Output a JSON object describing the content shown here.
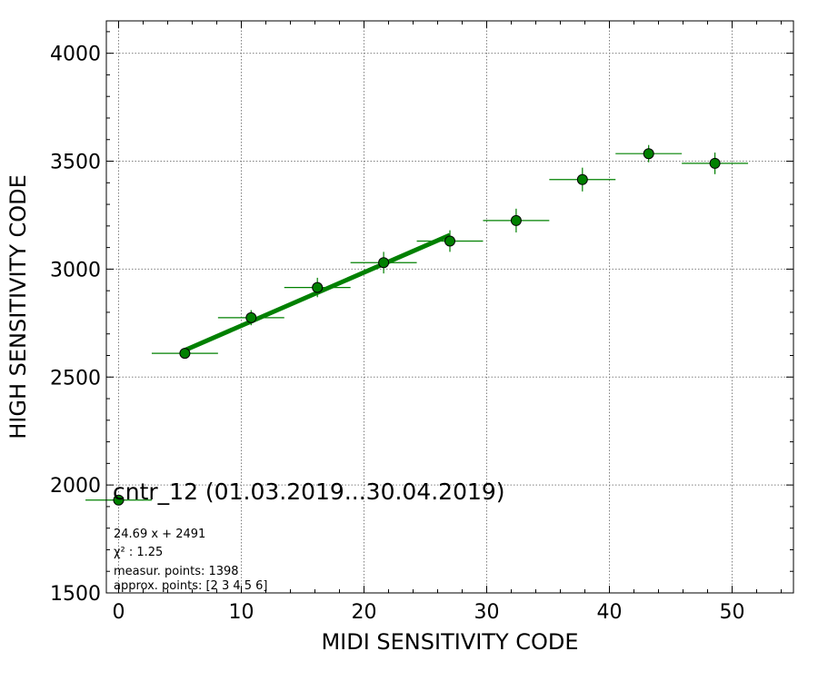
{
  "chart_data": {
    "type": "scatter",
    "title": "cntr_12 (01.03.2019...30.04.2019)",
    "xlabel": "MIDI SENSITIVITY CODE",
    "ylabel": "HIGH SENSITIVITY CODE",
    "xlim": [
      -1,
      55
    ],
    "ylim": [
      1500,
      4150
    ],
    "xticks": [
      0,
      10,
      20,
      30,
      40,
      50
    ],
    "yticks": [
      1500,
      2000,
      2500,
      3000,
      3500,
      4000
    ],
    "grid": true,
    "colors": {
      "marker": "#008000",
      "fit": "#008000",
      "errorbar": "#008000",
      "grid": "#808080"
    },
    "points": [
      {
        "x": 0,
        "y": 1930,
        "xerr": 2.7,
        "yerr": 10
      },
      {
        "x": 5.4,
        "y": 2610,
        "xerr": 2.7,
        "yerr": 15
      },
      {
        "x": 10.8,
        "y": 2775,
        "xerr": 2.7,
        "yerr": 35
      },
      {
        "x": 16.2,
        "y": 2915,
        "xerr": 2.7,
        "yerr": 45
      },
      {
        "x": 21.6,
        "y": 3030,
        "xerr": 2.7,
        "yerr": 50
      },
      {
        "x": 27.0,
        "y": 3130,
        "xerr": 2.7,
        "yerr": 50
      },
      {
        "x": 32.4,
        "y": 3225,
        "xerr": 2.7,
        "yerr": 55
      },
      {
        "x": 37.8,
        "y": 3415,
        "xerr": 2.7,
        "yerr": 55
      },
      {
        "x": 43.2,
        "y": 3535,
        "xerr": 2.7,
        "yerr": 40
      },
      {
        "x": 48.6,
        "y": 3490,
        "xerr": 2.7,
        "yerr": 50
      }
    ],
    "fit": {
      "slope": 24.69,
      "intercept": 2491,
      "x_start": 5.4,
      "x_end": 27.0
    },
    "annotations": [
      "24.69 x + 2491",
      "χ² : 1.25",
      "measur. points: 1398",
      "approx. points: [2 3 4 5 6]"
    ]
  }
}
